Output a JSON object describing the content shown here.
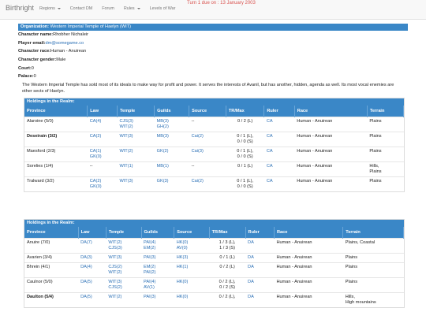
{
  "nav": {
    "brand": "Birthright",
    "items": [
      "Regions",
      "Contact DM",
      "Forum",
      "Rules",
      "Levels of War"
    ],
    "turn": "Turn 1 due on : 13 January 2003"
  },
  "org": {
    "header_label": "Organization:",
    "header_value": "Western Imperial Temple of Haelyn (WIT)",
    "fields": [
      {
        "label": "Character name:",
        "value": "Rhobher Nichaleir",
        "link": false
      },
      {
        "label": "Player email:",
        "value": "dm@somegame.co",
        "link": true
      },
      {
        "label": "Character race:",
        "value": "Human - Anuirean",
        "link": false
      },
      {
        "label": "Character gender:",
        "value": "Male",
        "link": false
      },
      {
        "label": "Court:",
        "value": "0",
        "link": false
      },
      {
        "label": "Palace:",
        "value": "0",
        "link": false
      }
    ],
    "description": "The Western Imperial Temple has sold most of its ideals to make way for profit and power. It serves the interests of Avanil, but has another, hidden, agenda as well. Its most vocal enemies are other sects of Haelyn."
  },
  "table1": {
    "title": "Holdings in the Realm:",
    "headers": [
      "Province",
      "Law",
      "Temple",
      "Guilds",
      "Source",
      "TR/Max",
      "Ruler",
      "Race",
      "Terrain"
    ],
    "rows": [
      {
        "province": "Alaroine (5/0)",
        "bold": false,
        "law": [
          "CA(4)"
        ],
        "temple": [
          "CJS(3)",
          "WIT(2)"
        ],
        "guilds": [
          "MB(3)",
          "GH(2)"
        ],
        "source": [
          "--"
        ],
        "tr": [
          "0 / 2 (L)"
        ],
        "ruler": "CA",
        "race": "Human - Anuirean",
        "terrain": [
          "Plains"
        ]
      },
      {
        "province": "Deseirain (3/2)",
        "bold": true,
        "law": [
          "CA(2)"
        ],
        "temple": [
          "WIT(3)"
        ],
        "guilds": [
          "MB(3)"
        ],
        "source": [
          "Cai(2)"
        ],
        "tr": [
          "0 / 1 (L),",
          "0 / 0 (S)"
        ],
        "ruler": "CA",
        "race": "Human - Anuirean",
        "terrain": [
          "Plains"
        ]
      },
      {
        "province": "Maesford (2/3)",
        "bold": false,
        "law": [
          "CA(1)",
          "GK(0)"
        ],
        "temple": [
          "WIT(2)"
        ],
        "guilds": [
          "GK(2)"
        ],
        "source": [
          "Cai(3)"
        ],
        "tr": [
          "0 / 1 (L),",
          "0 / 0 (S)"
        ],
        "ruler": "CA",
        "race": "Human - Anuirean",
        "terrain": [
          "Plains"
        ]
      },
      {
        "province": "Sorelies (1/4)",
        "bold": false,
        "law": [
          "--"
        ],
        "temple": [
          "WIT(1)"
        ],
        "guilds": [
          "MB(1)"
        ],
        "source": [
          "--"
        ],
        "tr": [
          "0 / 1 (L)"
        ],
        "ruler": "CA",
        "race": "Human - Anuirean",
        "terrain": [
          "Hills,",
          "Plains"
        ]
      },
      {
        "province": "Tralward (3/2)",
        "bold": false,
        "law": [
          "CA(2)",
          "GK(0)"
        ],
        "temple": [
          "WIT(3)"
        ],
        "guilds": [
          "GK(3)"
        ],
        "source": [
          "Cai(2)"
        ],
        "tr": [
          "0 / 1 (L),",
          "0 / 0 (S)"
        ],
        "ruler": "CA",
        "race": "Human - Anuirean",
        "terrain": [
          "Plains"
        ]
      }
    ]
  },
  "table2": {
    "title": "Holdings in the Realm:",
    "headers": [
      "Province",
      "Law",
      "Temple",
      "Guilds",
      "Source",
      "TR/Max",
      "Ruler",
      "Race",
      "Terrain"
    ],
    "rows": [
      {
        "province": "Anuire (7/0)",
        "bold": false,
        "law": [
          "DA(7)"
        ],
        "temple": [
          "WIT(2)",
          "CJS(3)"
        ],
        "guilds": [
          "PAI(4)",
          "EM(2)"
        ],
        "source": [
          "HK(0)",
          "AV(0)"
        ],
        "tr": [
          "1 / 3 (L),",
          "1 / 3 (S)"
        ],
        "ruler": "DA",
        "race": "Human - Anuirean",
        "terrain": [
          "Plains, Coastal"
        ]
      },
      {
        "province": "Avarien (3/4)",
        "bold": false,
        "law": [
          "DA(3)"
        ],
        "temple": [
          "WIT(3)"
        ],
        "guilds": [
          "PAI(3)"
        ],
        "source": [
          "HK(3)"
        ],
        "tr": [
          "0 / 1 (L)"
        ],
        "ruler": "DA",
        "race": "Human - Anuirean",
        "terrain": [
          "Plains"
        ]
      },
      {
        "province": "Bhrein (4/1)",
        "bold": false,
        "law": [
          "DA(4)"
        ],
        "temple": [
          "CJS(2)",
          "WIT(2)"
        ],
        "guilds": [
          "EM(2)",
          "PAI(2)"
        ],
        "source": [
          "HK(1)"
        ],
        "tr": [
          "0 / 2 (L)"
        ],
        "ruler": "DA",
        "race": "Human - Anuirean",
        "terrain": [
          "Plains"
        ]
      },
      {
        "province": "Caulnor (5/0)",
        "bold": false,
        "law": [
          "DA(5)"
        ],
        "temple": [
          "WIT(3)",
          "CJS(2)"
        ],
        "guilds": [
          "PAI(4)",
          "AV(1)"
        ],
        "source": [
          "HK(0)"
        ],
        "tr": [
          "0 / 2 (L),",
          "0 / 2 (S)"
        ],
        "ruler": "DA",
        "race": "Human - Anuirean",
        "terrain": [
          "Plains"
        ]
      },
      {
        "province": "Daulton (5/4)",
        "bold": true,
        "law": [
          "DA(5)"
        ],
        "temple": [
          "WIT(2)"
        ],
        "guilds": [
          "PAI(3)"
        ],
        "source": [
          "HK(0)"
        ],
        "tr": [
          "0 / 2 (L),"
        ],
        "ruler": "DA",
        "race": "Human - Anuirean",
        "terrain": [
          "Hills,",
          "High mountains"
        ]
      }
    ]
  }
}
